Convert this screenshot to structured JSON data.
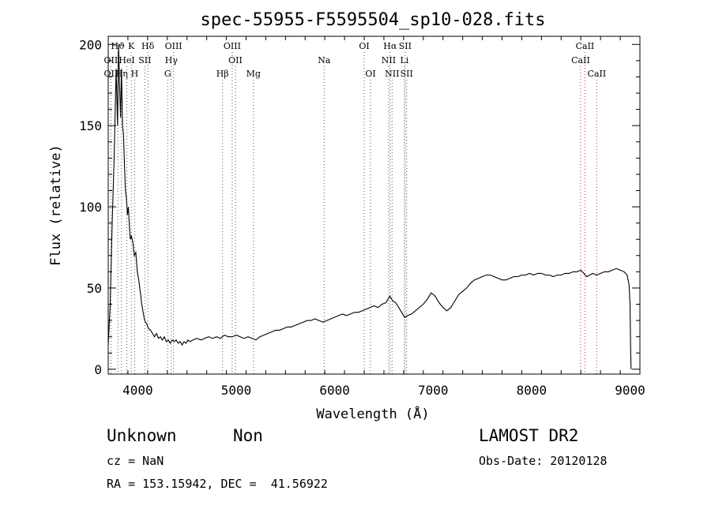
{
  "chart_data": {
    "type": "line",
    "title": "spec-55955-F5595504_sp10-028.fits",
    "xlabel": "Wavelength (Å)",
    "ylabel": "Flux (relative)",
    "xlim": [
      3700,
      9100
    ],
    "ylim": [
      -3,
      205
    ],
    "x_ticks": [
      4000,
      5000,
      6000,
      7000,
      8000,
      9000
    ],
    "y_ticks": [
      0,
      50,
      100,
      150,
      200
    ],
    "grid": false,
    "series": [
      {
        "points": [
          [
            3700,
            15
          ],
          [
            3720,
            40
          ],
          [
            3740,
            90
          ],
          [
            3760,
            130
          ],
          [
            3780,
            185
          ],
          [
            3795,
            150
          ],
          [
            3805,
            200
          ],
          [
            3815,
            175
          ],
          [
            3825,
            155
          ],
          [
            3835,
            185
          ],
          [
            3845,
            150
          ],
          [
            3855,
            145
          ],
          [
            3865,
            125
          ],
          [
            3875,
            110
          ],
          [
            3885,
            105
          ],
          [
            3895,
            95
          ],
          [
            3905,
            100
          ],
          [
            3915,
            88
          ],
          [
            3925,
            80
          ],
          [
            3935,
            82
          ],
          [
            3950,
            78
          ],
          [
            3965,
            70
          ],
          [
            3980,
            72
          ],
          [
            3995,
            60
          ],
          [
            4010,
            55
          ],
          [
            4025,
            48
          ],
          [
            4040,
            40
          ],
          [
            4055,
            35
          ],
          [
            4070,
            30
          ],
          [
            4090,
            28
          ],
          [
            4110,
            25
          ],
          [
            4130,
            24
          ],
          [
            4150,
            22
          ],
          [
            4170,
            20
          ],
          [
            4190,
            22
          ],
          [
            4210,
            19
          ],
          [
            4230,
            20
          ],
          [
            4250,
            18
          ],
          [
            4270,
            20
          ],
          [
            4290,
            17
          ],
          [
            4310,
            18
          ],
          [
            4330,
            16
          ],
          [
            4350,
            18
          ],
          [
            4370,
            17
          ],
          [
            4390,
            18
          ],
          [
            4410,
            16
          ],
          [
            4430,
            17
          ],
          [
            4450,
            15
          ],
          [
            4470,
            17
          ],
          [
            4490,
            16
          ],
          [
            4510,
            18
          ],
          [
            4530,
            17
          ],
          [
            4560,
            18
          ],
          [
            4600,
            19
          ],
          [
            4640,
            18
          ],
          [
            4680,
            19
          ],
          [
            4720,
            20
          ],
          [
            4760,
            19
          ],
          [
            4800,
            20
          ],
          [
            4840,
            19
          ],
          [
            4880,
            21
          ],
          [
            4920,
            20
          ],
          [
            4960,
            20
          ],
          [
            5000,
            21
          ],
          [
            5040,
            20
          ],
          [
            5080,
            19
          ],
          [
            5120,
            20
          ],
          [
            5160,
            19
          ],
          [
            5200,
            18
          ],
          [
            5240,
            20
          ],
          [
            5280,
            21
          ],
          [
            5320,
            22
          ],
          [
            5360,
            23
          ],
          [
            5400,
            24
          ],
          [
            5440,
            24
          ],
          [
            5480,
            25
          ],
          [
            5520,
            26
          ],
          [
            5560,
            26
          ],
          [
            5600,
            27
          ],
          [
            5640,
            28
          ],
          [
            5680,
            29
          ],
          [
            5720,
            30
          ],
          [
            5760,
            30
          ],
          [
            5800,
            31
          ],
          [
            5840,
            30
          ],
          [
            5880,
            29
          ],
          [
            5920,
            30
          ],
          [
            5960,
            31
          ],
          [
            6000,
            32
          ],
          [
            6040,
            33
          ],
          [
            6080,
            34
          ],
          [
            6120,
            33
          ],
          [
            6160,
            34
          ],
          [
            6200,
            35
          ],
          [
            6240,
            35
          ],
          [
            6280,
            36
          ],
          [
            6320,
            37
          ],
          [
            6360,
            38
          ],
          [
            6400,
            39
          ],
          [
            6440,
            38
          ],
          [
            6480,
            40
          ],
          [
            6520,
            41
          ],
          [
            6560,
            45
          ],
          [
            6590,
            42
          ],
          [
            6620,
            41
          ],
          [
            6650,
            38
          ],
          [
            6680,
            35
          ],
          [
            6710,
            32
          ],
          [
            6740,
            33
          ],
          [
            6780,
            34
          ],
          [
            6820,
            36
          ],
          [
            6860,
            38
          ],
          [
            6900,
            40
          ],
          [
            6940,
            43
          ],
          [
            6980,
            47
          ],
          [
            7020,
            45
          ],
          [
            7060,
            41
          ],
          [
            7100,
            38
          ],
          [
            7140,
            36
          ],
          [
            7180,
            38
          ],
          [
            7220,
            42
          ],
          [
            7260,
            46
          ],
          [
            7300,
            48
          ],
          [
            7340,
            50
          ],
          [
            7380,
            53
          ],
          [
            7420,
            55
          ],
          [
            7460,
            56
          ],
          [
            7500,
            57
          ],
          [
            7540,
            58
          ],
          [
            7580,
            58
          ],
          [
            7620,
            57
          ],
          [
            7660,
            56
          ],
          [
            7700,
            55
          ],
          [
            7740,
            55
          ],
          [
            7780,
            56
          ],
          [
            7820,
            57
          ],
          [
            7860,
            57
          ],
          [
            7900,
            58
          ],
          [
            7940,
            58
          ],
          [
            7980,
            59
          ],
          [
            8020,
            58
          ],
          [
            8060,
            59
          ],
          [
            8100,
            59
          ],
          [
            8140,
            58
          ],
          [
            8180,
            58
          ],
          [
            8220,
            57
          ],
          [
            8260,
            58
          ],
          [
            8300,
            58
          ],
          [
            8340,
            59
          ],
          [
            8380,
            59
          ],
          [
            8420,
            60
          ],
          [
            8460,
            60
          ],
          [
            8500,
            61
          ],
          [
            8530,
            59
          ],
          [
            8560,
            57
          ],
          [
            8590,
            58
          ],
          [
            8620,
            59
          ],
          [
            8660,
            58
          ],
          [
            8700,
            59
          ],
          [
            8740,
            60
          ],
          [
            8780,
            60
          ],
          [
            8820,
            61
          ],
          [
            8860,
            62
          ],
          [
            8900,
            61
          ],
          [
            8940,
            60
          ],
          [
            8970,
            58
          ],
          [
            8990,
            52
          ],
          [
            9000,
            40
          ],
          [
            9005,
            15
          ],
          [
            9010,
            0
          ]
        ]
      }
    ],
    "line_markers": [
      {
        "label": "Hϑ",
        "wave": 3798,
        "row": 0
      },
      {
        "label": "K",
        "wave": 3934,
        "row": 0
      },
      {
        "label": "Hδ",
        "wave": 4102,
        "row": 0
      },
      {
        "label": "OIII",
        "wave": 4363,
        "row": 0
      },
      {
        "label": "OIII",
        "wave": 4959,
        "row": 0
      },
      {
        "label": "OI",
        "wave": 6300,
        "row": 0
      },
      {
        "label": "Hα",
        "wave": 6563,
        "row": 0
      },
      {
        "label": "SII",
        "wave": 6716,
        "row": 0
      },
      {
        "label": "CaII",
        "wave": 8542,
        "row": 0
      },
      {
        "label": "OII",
        "wave": 3727,
        "row": 1
      },
      {
        "label": "HeI",
        "wave": 3889,
        "row": 1
      },
      {
        "label": "SII",
        "wave": 4072,
        "row": 1
      },
      {
        "label": "Hγ",
        "wave": 4341,
        "row": 1
      },
      {
        "label": "OII",
        "wave": 4992,
        "row": 1
      },
      {
        "label": "Na",
        "wave": 5893,
        "row": 1
      },
      {
        "label": "NII",
        "wave": 6548,
        "row": 1
      },
      {
        "label": "Li",
        "wave": 6708,
        "row": 1
      },
      {
        "label": "CaII",
        "wave": 8498,
        "row": 1
      },
      {
        "label": "OII",
        "wave": 3727,
        "row": 2
      },
      {
        "label": "Hη",
        "wave": 3835,
        "row": 2
      },
      {
        "label": "H",
        "wave": 3968,
        "row": 2
      },
      {
        "label": "G",
        "wave": 4304,
        "row": 2
      },
      {
        "label": "Hβ",
        "wave": 4861,
        "row": 2
      },
      {
        "label": "Mg",
        "wave": 5175,
        "row": 2
      },
      {
        "label": "OI",
        "wave": 6364,
        "row": 2
      },
      {
        "label": "NII",
        "wave": 6583,
        "row": 2
      },
      {
        "label": "SII",
        "wave": 6731,
        "row": 2
      },
      {
        "label": "CaII",
        "wave": 8662,
        "row": 2
      }
    ]
  },
  "footer": {
    "class_label": "Unknown",
    "subclass_label": "Non",
    "survey": "LAMOST DR2",
    "cz": "cz = NaN",
    "obs_date": "Obs-Date: 20120128",
    "coords": "RA = 153.15942, DEC =  41.56922"
  }
}
